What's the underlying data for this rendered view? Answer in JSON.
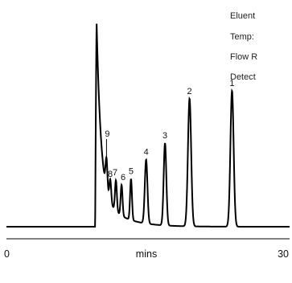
{
  "chart_data": {
    "type": "line",
    "title": "",
    "xlabel": "mins",
    "ylabel": "",
    "xlim": [
      0,
      30
    ],
    "x_ticks": [
      "0",
      "30"
    ],
    "conditions": [
      "Eluent",
      "Temp:",
      "Flow R",
      "Detect"
    ],
    "peaks": [
      {
        "label": "1",
        "time": 23.9,
        "height": 0.66
      },
      {
        "label": "2",
        "time": 19.4,
        "height": 0.62
      },
      {
        "label": "3",
        "time": 16.8,
        "height": 0.4
      },
      {
        "label": "4",
        "time": 14.8,
        "height": 0.31
      },
      {
        "label": "5",
        "time": 13.2,
        "height": 0.2
      },
      {
        "label": "6",
        "time": 12.2,
        "height": 0.15
      },
      {
        "label": "7",
        "time": 11.6,
        "height": 0.15
      },
      {
        "label": "8",
        "time": 11.0,
        "height": 0.11
      },
      {
        "label": "9",
        "time": 10.6,
        "height": 0.15
      }
    ],
    "solvent_front": {
      "time": 9.4,
      "height": 1.0
    }
  }
}
